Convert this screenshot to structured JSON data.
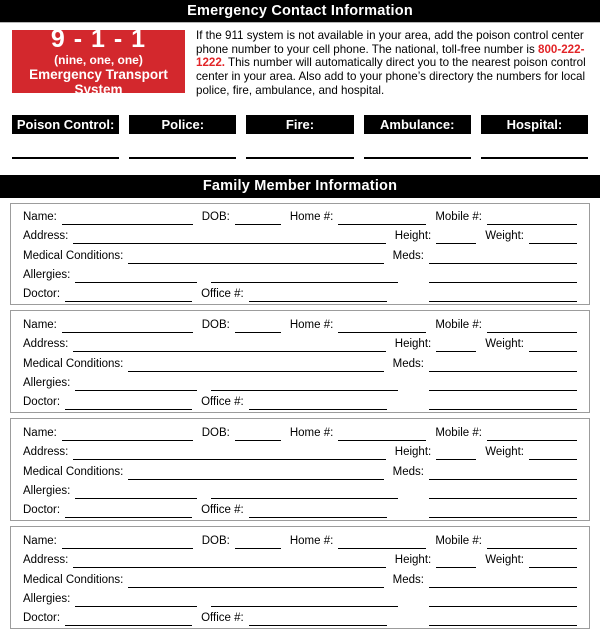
{
  "colors": {
    "accent_red": "#d3282d",
    "phone_red": "#e22427",
    "bar_black": "#000000"
  },
  "headers": {
    "emergency": "Emergency Contact Information",
    "family": "Family Member Information"
  },
  "red_box": {
    "big": "9 - 1 - 1",
    "sub": "(nine, one, one)",
    "caption": "Emergency Transport System"
  },
  "paragraph": {
    "before": "If the 911 system is not available in your area, add the poison control center phone number to your cell phone. The national, toll-free number is ",
    "phone": "800-222-1222.",
    "after": " This number will automatically direct you to the nearest poison control center in your area. Also add to your phone’s directory the numbers for local police, fire, ambulance, and hospital."
  },
  "contacts": [
    {
      "key": "poison-control",
      "label": "Poison Control:"
    },
    {
      "key": "police",
      "label": "Police:"
    },
    {
      "key": "fire",
      "label": "Fire:"
    },
    {
      "key": "ambulance",
      "label": "Ambulance:"
    },
    {
      "key": "hospital",
      "label": "Hospital:"
    }
  ],
  "family": {
    "member_count": 4,
    "labels": {
      "name": "Name:",
      "dob": "DOB:",
      "home": "Home #:",
      "mobile": "Mobile #:",
      "address": "Address:",
      "height": "Height:",
      "weight": "Weight:",
      "medical": "Medical Conditions:",
      "meds": "Meds:",
      "allergies": "Allergies:",
      "doctor": "Doctor:",
      "office": "Office #:"
    }
  }
}
